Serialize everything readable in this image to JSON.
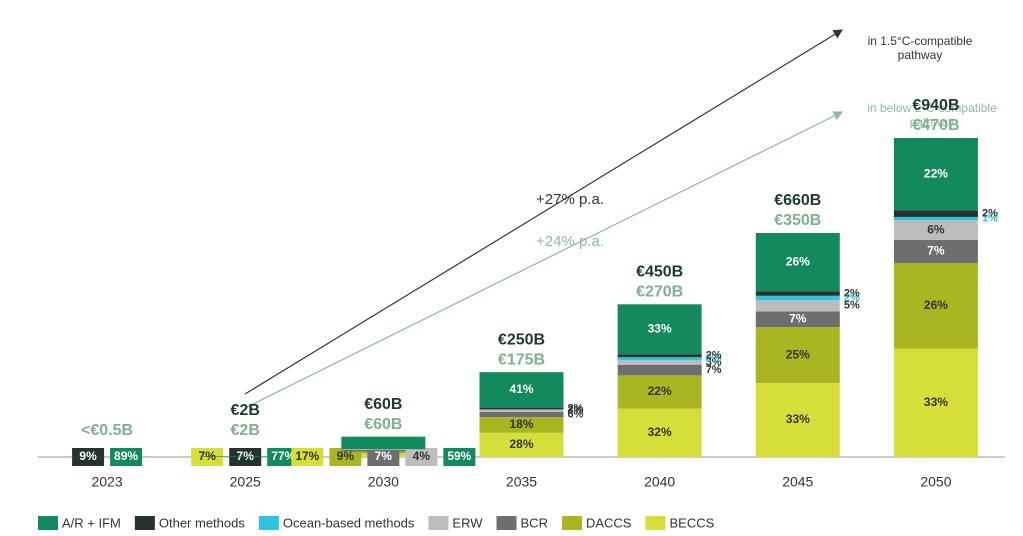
{
  "chart_data": {
    "type": "stacked_bar",
    "categories": [
      "2023",
      "2025",
      "2030",
      "2035",
      "2040",
      "2045",
      "2050"
    ],
    "series": [
      {
        "name": "BECCS",
        "color": "#d6df3a",
        "values": [
          null,
          7,
          17,
          28,
          32,
          33,
          33
        ],
        "value_labels": [
          null,
          "7%",
          "17%",
          "28%",
          "32%",
          "33%",
          "33%"
        ]
      },
      {
        "name": "DACCS",
        "color": "#a9b621",
        "values": [
          null,
          null,
          9,
          18,
          22,
          25,
          26
        ],
        "value_labels": [
          null,
          null,
          "9%",
          "18%",
          "22%",
          "25%",
          "26%"
        ]
      },
      {
        "name": "BCR",
        "color": "#6d6e70",
        "values": [
          null,
          null,
          7,
          6,
          7,
          7,
          7
        ],
        "value_labels": [
          null,
          null,
          "7%",
          "6%",
          "7%",
          "7%",
          "7%"
        ]
      },
      {
        "name": "ERW",
        "color": "#bdbdbd",
        "values": [
          null,
          null,
          4,
          3,
          3,
          5,
          6
        ],
        "value_labels": [
          null,
          null,
          "4%",
          "3%",
          "3%",
          "5%",
          "6%"
        ]
      },
      {
        "name": "Ocean-based methods",
        "color": "#2ec3df",
        "values": [
          null,
          null,
          null,
          null,
          2,
          2,
          1
        ],
        "value_labels": [
          null,
          null,
          null,
          null,
          "2%",
          "2%",
          "1%"
        ]
      },
      {
        "name": "Other methods",
        "color": "#26332d",
        "values": [
          9,
          7,
          null,
          2,
          2,
          2,
          2
        ],
        "value_labels": [
          "9%",
          "7%",
          null,
          "2%",
          "2%",
          "2%",
          "2%"
        ]
      },
      {
        "name": "A/R + IFM",
        "color": "#138a5e",
        "values": [
          89,
          77,
          59,
          41,
          33,
          26,
          22
        ],
        "value_labels": [
          "89%",
          "77%",
          "59%",
          "41%",
          "33%",
          "26%",
          "22%"
        ]
      }
    ],
    "totals": [
      {
        "color": "#1f3a2c",
        "values": [
          null,
          2,
          60,
          250,
          450,
          660,
          940
        ],
        "value_labels": [
          null,
          "€2B",
          "€60B",
          "€250B",
          "€450B",
          "€660B",
          "€940B"
        ]
      },
      {
        "color": "#7fb08f",
        "values": [
          0.5,
          2,
          60,
          175,
          270,
          350,
          470
        ],
        "value_labels": [
          "<€0.5B",
          "€2B",
          "€60B",
          "€175B",
          "€270B",
          "€350B",
          "€470B"
        ]
      }
    ],
    "annotations": [
      "+27% p.a.",
      "+24% p.a.",
      "in 1.5°C-compatible pathway",
      "in below 2°C-compatible pathway"
    ],
    "legend": "bottom"
  }
}
